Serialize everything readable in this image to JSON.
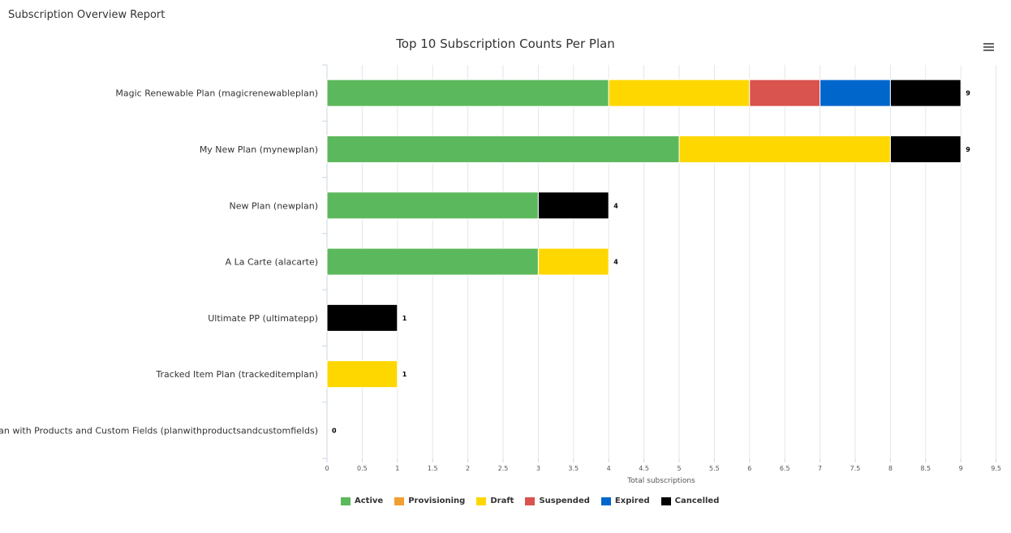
{
  "report": {
    "title": "Subscription Overview Report"
  },
  "menu": {
    "icon": "hamburger-menu-icon"
  },
  "chart_data": {
    "type": "bar",
    "orientation": "horizontal",
    "stacked": true,
    "title": "Top 10 Subscription Counts Per Plan",
    "xlabel": "Total subscriptions",
    "ylabel": "",
    "xlim": [
      0,
      9.5
    ],
    "xticks": [
      "0",
      "0.5",
      "1",
      "1.5",
      "2",
      "2.5",
      "3",
      "3.5",
      "4",
      "4.5",
      "5",
      "5.5",
      "6",
      "6.5",
      "7",
      "7.5",
      "8",
      "8.5",
      "9",
      "9.5"
    ],
    "grid": true,
    "legend_position": "bottom",
    "categories": [
      "Magic Renewable Plan (magicrenewableplan)",
      "My New Plan (mynewplan)",
      "New Plan (newplan)",
      "A La Carte (alacarte)",
      "Ultimate PP (ultimatepp)",
      "Tracked Item Plan (trackeditemplan)",
      "Plan with Products and Custom Fields (planwithproductsandcustomfields)"
    ],
    "totals": [
      "9",
      "9",
      "4",
      "4",
      "1",
      "1",
      "0"
    ],
    "series": [
      {
        "name": "Active",
        "color": "#5cb85c",
        "values": [
          4,
          5,
          3,
          3,
          0,
          0,
          0
        ]
      },
      {
        "name": "Provisioning",
        "color": "#f0a030",
        "values": [
          0,
          0,
          0,
          0,
          0,
          0,
          0
        ]
      },
      {
        "name": "Draft",
        "color": "#ffd700",
        "values": [
          2,
          3,
          0,
          1,
          0,
          1,
          0
        ]
      },
      {
        "name": "Suspended",
        "color": "#d9534f",
        "values": [
          1,
          0,
          0,
          0,
          0,
          0,
          0
        ]
      },
      {
        "name": "Expired",
        "color": "#0066cc",
        "values": [
          1,
          0,
          0,
          0,
          0,
          0,
          0
        ]
      },
      {
        "name": "Cancelled",
        "color": "#000000",
        "values": [
          1,
          1,
          1,
          0,
          1,
          0,
          0
        ]
      }
    ]
  }
}
